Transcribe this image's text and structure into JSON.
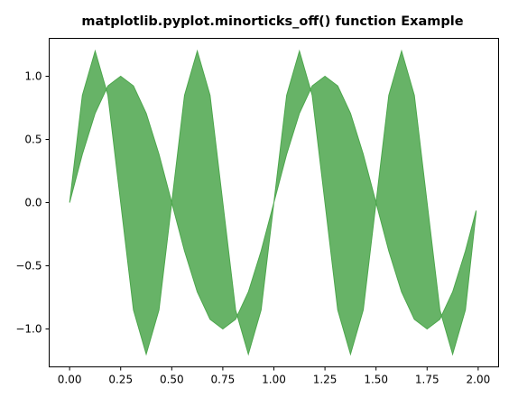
{
  "chart_data": {
    "type": "area",
    "title": "matplotlib.pyplot.minorticks_off() function Example",
    "xlabel": "",
    "ylabel": "",
    "xlim": [
      -0.1,
      2.1
    ],
    "ylim": [
      -1.3,
      1.3
    ],
    "x_ticks": [
      0.0,
      0.25,
      0.5,
      0.75,
      1.0,
      1.25,
      1.5,
      1.75,
      2.0
    ],
    "x_tick_labels": [
      "0.00",
      "0.25",
      "0.50",
      "0.75",
      "1.00",
      "1.25",
      "1.50",
      "1.75",
      "2.00"
    ],
    "y_ticks": [
      -1.0,
      -0.5,
      0.0,
      0.5,
      1.0
    ],
    "y_tick_labels": [
      "−1.0",
      "−0.5",
      "0.0",
      "0.5",
      "1.0"
    ],
    "fill_color": "#4ca64c",
    "fill_opacity": 0.85,
    "grid": false,
    "x": [
      0.0,
      0.0625,
      0.125,
      0.1875,
      0.25,
      0.3125,
      0.375,
      0.4375,
      0.5,
      0.5625,
      0.625,
      0.6875,
      0.75,
      0.8125,
      0.875,
      0.9375,
      1.0,
      1.0625,
      1.125,
      1.1875,
      1.25,
      1.3125,
      1.375,
      1.4375,
      1.5,
      1.5625,
      1.625,
      1.6875,
      1.75,
      1.8125,
      1.875,
      1.9375,
      1.99
    ],
    "series": [
      {
        "values": [
          0.0,
          0.849,
          1.2,
          0.849,
          0.0,
          -0.849,
          -1.2,
          -0.849,
          0.0,
          0.849,
          1.2,
          0.849,
          0.0,
          -0.849,
          -1.2,
          -0.849,
          0.0,
          0.849,
          1.2,
          0.849,
          0.0,
          -0.849,
          -1.2,
          -0.849,
          0.0,
          0.849,
          1.2,
          0.849,
          0.0,
          -0.849,
          -1.2,
          -0.849,
          -0.075
        ]
      },
      {
        "values": [
          0.0,
          0.383,
          0.707,
          0.924,
          1.0,
          0.924,
          0.707,
          0.383,
          0.0,
          -0.383,
          -0.707,
          -0.924,
          -1.0,
          -0.924,
          -0.707,
          -0.383,
          0.0,
          0.383,
          0.707,
          0.924,
          1.0,
          0.924,
          0.707,
          0.383,
          0.0,
          -0.383,
          -0.707,
          -0.924,
          -1.0,
          -0.924,
          -0.707,
          -0.383,
          -0.063
        ]
      }
    ]
  }
}
